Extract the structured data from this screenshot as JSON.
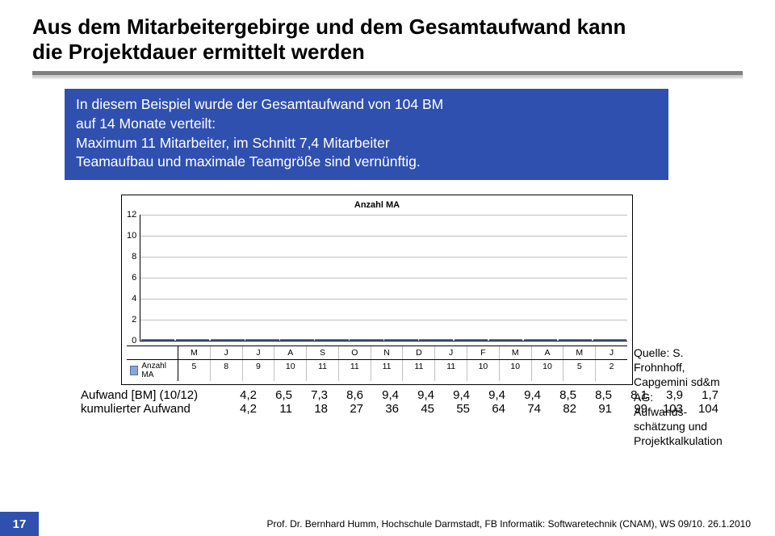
{
  "title_line1": "Aus dem Mitarbeitergebirge und dem Gesamtaufwand kann",
  "title_line2": "die Projektdauer ermittelt werden",
  "info": {
    "line1": "In diesem Beispiel wurde der Gesamtaufwand von 104 BM",
    "line2": "auf 14 Monate verteilt:",
    "line3": "Maximum 11 Mitarbeiter, im Schnitt 7,4 Mitarbeiter",
    "line4": "Teamaufbau und maximale Teamgröße sind vernünftig."
  },
  "chart": {
    "type": "bar",
    "title": "Anzahl MA",
    "y_ticks": [
      "12",
      "10",
      "8",
      "6",
      "4",
      "2",
      "0"
    ],
    "y_max": 12,
    "categories": [
      "M",
      "J",
      "J",
      "A",
      "S",
      "O",
      "N",
      "D",
      "J",
      "F",
      "M",
      "A",
      "M",
      "J"
    ],
    "values": [
      5,
      8,
      9,
      10,
      11,
      11,
      11,
      11,
      11,
      10,
      10,
      10,
      5,
      2
    ],
    "bar_fill": "#8aa4d6",
    "bar_border": "#5a6fa0",
    "grid_color": "#c0c0c0",
    "background": "#ffffff",
    "axis_color": "#000000",
    "series_label": "Anzahl MA",
    "title_fontsize": 11,
    "tick_fontsize": 11,
    "cell_fontsize": 10.5
  },
  "rows": {
    "aufwand": {
      "label": "Aufwand [BM] (10/12)",
      "values": [
        "4,2",
        "6,5",
        "7,3",
        "8,6",
        "9,4",
        "9,4",
        "9,4",
        "9,4",
        "9,4",
        "8,5",
        "8,5",
        "8,1",
        "3,9",
        "1,7"
      ]
    },
    "kumuliert": {
      "label": "kumulierter Aufwand",
      "values": [
        "4,2",
        "11",
        "18",
        "27",
        "36",
        "45",
        "55",
        "64",
        "74",
        "82",
        "91",
        "99",
        "103",
        "104"
      ]
    }
  },
  "source": {
    "l1": "Quelle: S.",
    "l2": "Frohnhoff,",
    "l3": "Capgemini sd&m",
    "l4": "AG:",
    "l5": "Aufwands-",
    "l6": "schätzung und",
    "l7": "Projektkalkulation"
  },
  "footer": {
    "page": "17",
    "text": "Prof. Dr. Bernhard Humm, Hochschule Darmstadt, FB Informatik: Softwaretechnik (CNAM), WS 09/10.   26.1.2010"
  },
  "colors": {
    "accent": "#3050b0",
    "hr_dark": "#808080",
    "hr_mid": "#cfcfcf",
    "hr_light": "#e8e8e8"
  }
}
